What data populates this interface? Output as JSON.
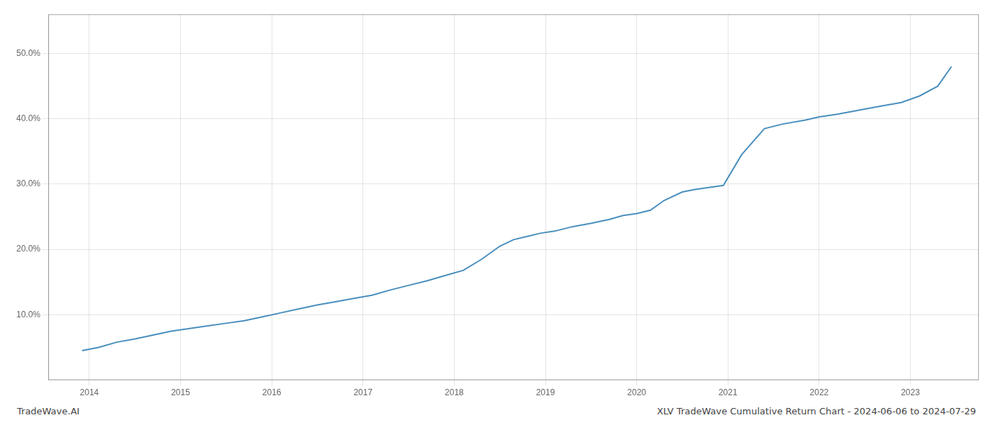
{
  "chart_data": {
    "type": "line",
    "x": [
      2013.92,
      2014.1,
      2014.3,
      2014.5,
      2014.7,
      2014.9,
      2015.1,
      2015.3,
      2015.5,
      2015.7,
      2015.9,
      2016.1,
      2016.3,
      2016.5,
      2016.7,
      2016.9,
      2017.1,
      2017.3,
      2017.5,
      2017.7,
      2017.9,
      2018.1,
      2018.3,
      2018.5,
      2018.65,
      2018.8,
      2018.95,
      2019.1,
      2019.3,
      2019.5,
      2019.7,
      2019.85,
      2020.0,
      2020.15,
      2020.3,
      2020.5,
      2020.65,
      2020.8,
      2020.95,
      2021.15,
      2021.4,
      2021.6,
      2021.85,
      2022.0,
      2022.2,
      2022.5,
      2022.7,
      2022.9,
      2023.1,
      2023.3,
      2023.45
    ],
    "values": [
      4.5,
      5.0,
      5.8,
      6.3,
      6.9,
      7.5,
      7.9,
      8.3,
      8.7,
      9.1,
      9.7,
      10.3,
      10.9,
      11.5,
      12.0,
      12.5,
      13.0,
      13.8,
      14.5,
      15.2,
      16.0,
      16.8,
      18.5,
      20.5,
      21.5,
      22.0,
      22.5,
      22.8,
      23.5,
      24.0,
      24.6,
      25.2,
      25.5,
      26.0,
      27.5,
      28.8,
      29.2,
      29.5,
      29.8,
      34.5,
      38.5,
      39.2,
      39.8,
      40.3,
      40.7,
      41.5,
      42.0,
      42.5,
      43.5,
      45.0,
      48.0
    ],
    "color": "#4a8fbe",
    "xlim": [
      2013.55,
      2023.75
    ],
    "xticks": [
      2014,
      2015,
      2016,
      2017,
      2018,
      2019,
      2020,
      2021,
      2022,
      2023
    ],
    "ylim": [
      0,
      56
    ],
    "yticks": [
      {
        "value": 10.0,
        "label": "10.0%"
      },
      {
        "value": 20.0,
        "label": "20.0%"
      },
      {
        "value": 30.0,
        "label": "30.0%"
      },
      {
        "value": 40.0,
        "label": "40.0%"
      },
      {
        "value": 50.0,
        "label": "50.0%"
      }
    ],
    "grid": true,
    "annotations": [
      "TradeWave.AI",
      "XLV TradeWave Cumulative Return Chart - 2024-06-06 to 2024-07-29"
    ]
  }
}
